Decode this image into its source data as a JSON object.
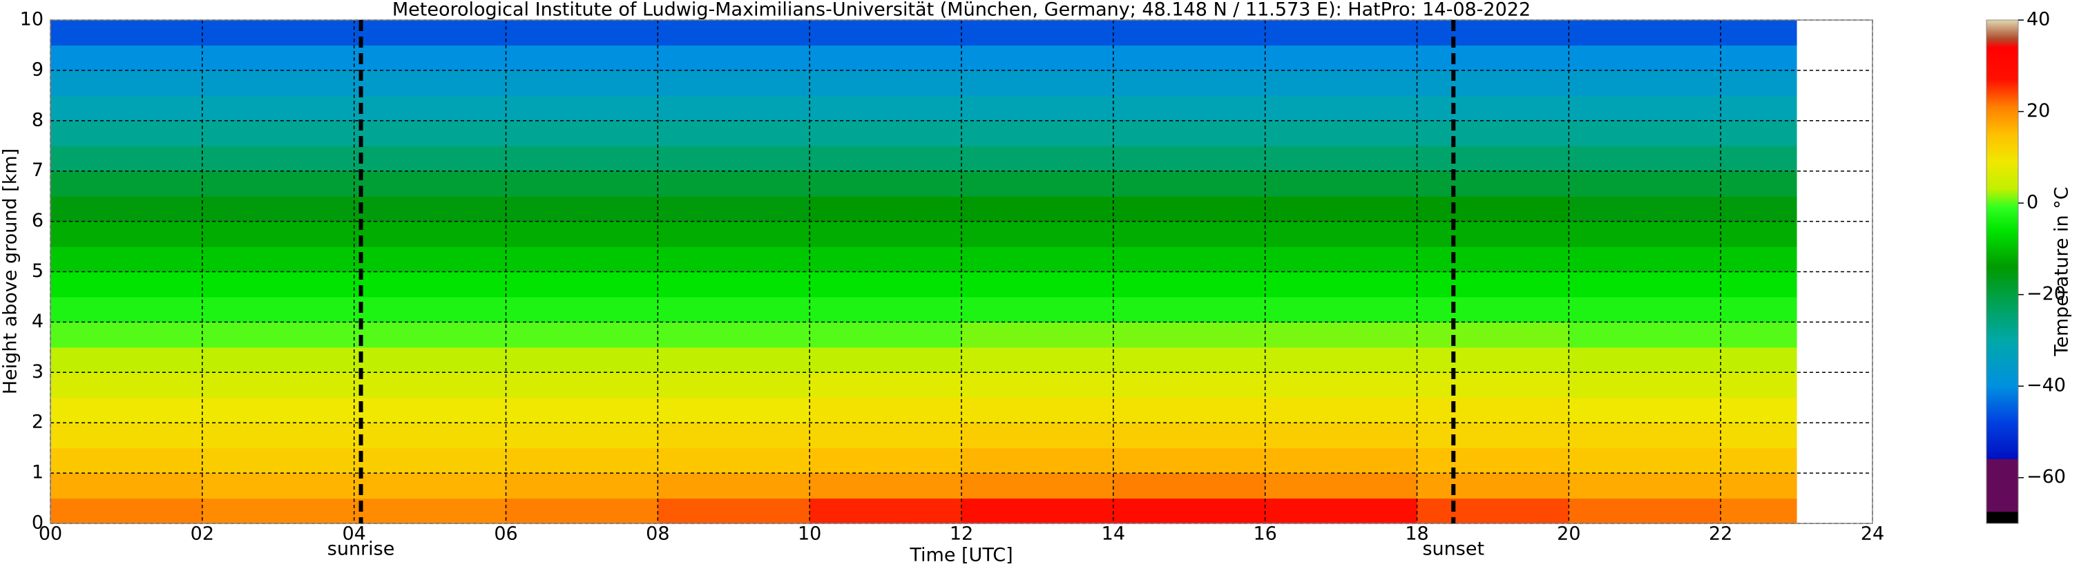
{
  "chart_data": {
    "type": "heatmap",
    "title": "Meteorological Institute of Ludwig-Maximilians-Universität (München, Germany; 48.148 N / 11.573 E):    HatPro: 14-08-2022",
    "xlabel": "Time [UTC]",
    "ylabel": "Height above ground [km]",
    "xlim": [
      0,
      24
    ],
    "ylim": [
      0,
      10
    ],
    "xticks": [
      {
        "value": 0,
        "label": "00"
      },
      {
        "value": 2,
        "label": "02"
      },
      {
        "value": 4,
        "label": "04"
      },
      {
        "value": 6,
        "label": "06"
      },
      {
        "value": 8,
        "label": "08"
      },
      10,
      12,
      14,
      16,
      18,
      20,
      22,
      24
    ],
    "yticks": [
      0,
      1,
      2,
      3,
      4,
      5,
      6,
      7,
      8,
      9,
      10
    ],
    "grid": true,
    "xbins": [
      0,
      2,
      4,
      6,
      8,
      10,
      12,
      14,
      16,
      18,
      20,
      22,
      23
    ],
    "ybins": [
      0,
      0.5,
      1,
      1.5,
      2,
      2.5,
      3,
      3.5,
      4,
      4.5,
      5,
      5.5,
      6,
      6.5,
      7,
      7.5,
      8,
      8.5,
      9,
      9.5,
      10
    ],
    "z": [
      [
        21,
        20,
        20,
        21,
        23,
        26,
        28,
        29,
        28,
        24,
        22,
        21
      ],
      [
        17,
        16,
        16,
        17,
        18,
        19,
        20,
        21,
        20,
        18,
        17,
        17
      ],
      [
        14,
        13,
        13,
        14,
        14,
        15,
        16,
        16,
        16,
        15,
        14,
        14
      ],
      [
        11,
        11,
        11,
        11,
        12,
        12,
        13,
        13,
        13,
        12,
        12,
        11
      ],
      [
        9,
        9,
        9,
        9,
        9,
        10,
        10,
        10,
        10,
        10,
        9,
        9
      ],
      [
        6,
        6,
        6,
        6,
        6,
        7,
        7,
        7,
        7,
        7,
        6,
        6
      ],
      [
        3,
        3,
        3,
        3,
        3,
        3,
        4,
        4,
        4,
        4,
        3,
        3
      ],
      [
        0,
        0,
        0,
        0,
        0,
        0,
        1,
        1,
        1,
        1,
        0,
        0
      ],
      [
        -3,
        -3,
        -3,
        -3,
        -3,
        -3,
        -3,
        -3,
        -3,
        -3,
        -3,
        -3
      ],
      [
        -6,
        -6,
        -6,
        -6,
        -6,
        -6,
        -6,
        -6,
        -6,
        -6,
        -6,
        -6
      ],
      [
        -9,
        -9,
        -9,
        -9,
        -9,
        -9,
        -9,
        -9,
        -9,
        -9,
        -9,
        -9
      ],
      [
        -12,
        -12,
        -12,
        -12,
        -12,
        -12,
        -12,
        -12,
        -12,
        -12,
        -12,
        -12
      ],
      [
        -15,
        -15,
        -15,
        -15,
        -15,
        -14,
        -14,
        -14,
        -14,
        -14,
        -15,
        -15
      ],
      [
        -19,
        -19,
        -19,
        -19,
        -19,
        -19,
        -19,
        -19,
        -19,
        -19,
        -19,
        -19
      ],
      [
        -24,
        -24,
        -24,
        -24,
        -24,
        -24,
        -24,
        -24,
        -24,
        -24,
        -24,
        -24
      ],
      [
        -28,
        -28,
        -28,
        -28,
        -28,
        -28,
        -28,
        -28,
        -28,
        -28,
        -28,
        -28
      ],
      [
        -32,
        -32,
        -32,
        -32,
        -32,
        -32,
        -32,
        -32,
        -32,
        -32,
        -32,
        -32
      ],
      [
        -36,
        -36,
        -36,
        -36,
        -36,
        -36,
        -36,
        -36,
        -36,
        -36,
        -36,
        -36
      ],
      [
        -40,
        -40,
        -40,
        -40,
        -40,
        -40,
        -40,
        -40,
        -40,
        -40,
        -40,
        -40
      ],
      [
        -46,
        -46,
        -46,
        -46,
        -46,
        -46,
        -46,
        -46,
        -46,
        -46,
        -46,
        -46
      ]
    ],
    "annotations": [
      {
        "label": "sunrise",
        "x": 4.09
      },
      {
        "label": "sunset",
        "x": 18.48
      }
    ],
    "colorbar": {
      "label": "Temperature in °C",
      "clim": [
        -70,
        40
      ],
      "ticks": [
        {
          "value": -60,
          "label": "−60"
        },
        {
          "value": -40,
          "label": "−40"
        },
        {
          "value": -20,
          "label": "−20"
        },
        0,
        20,
        40
      ],
      "colormap": [
        {
          "value": -70,
          "color": "#000000"
        },
        {
          "value": -67.5,
          "color": "#000000"
        },
        {
          "value": -67.4,
          "color": "#640a5a"
        },
        {
          "value": -56,
          "color": "#640a5a"
        },
        {
          "value": -55.9,
          "color": "#0010c0"
        },
        {
          "value": -48,
          "color": "#0040e0"
        },
        {
          "value": -40,
          "color": "#0090e0"
        },
        {
          "value": -30,
          "color": "#00a8a8"
        },
        {
          "value": -20,
          "color": "#00a040"
        },
        {
          "value": -14,
          "color": "#009a00"
        },
        {
          "value": -6,
          "color": "#00e400"
        },
        {
          "value": -1,
          "color": "#30ff20"
        },
        {
          "value": 3,
          "color": "#c0f000"
        },
        {
          "value": 9,
          "color": "#f0e800"
        },
        {
          "value": 15,
          "color": "#ffc000"
        },
        {
          "value": 21,
          "color": "#ff8000"
        },
        {
          "value": 27,
          "color": "#ff1000"
        },
        {
          "value": 34,
          "color": "#ff0000"
        },
        {
          "value": 36,
          "color": "#b05030"
        },
        {
          "value": 40,
          "color": "#e0d8b0"
        }
      ]
    }
  }
}
